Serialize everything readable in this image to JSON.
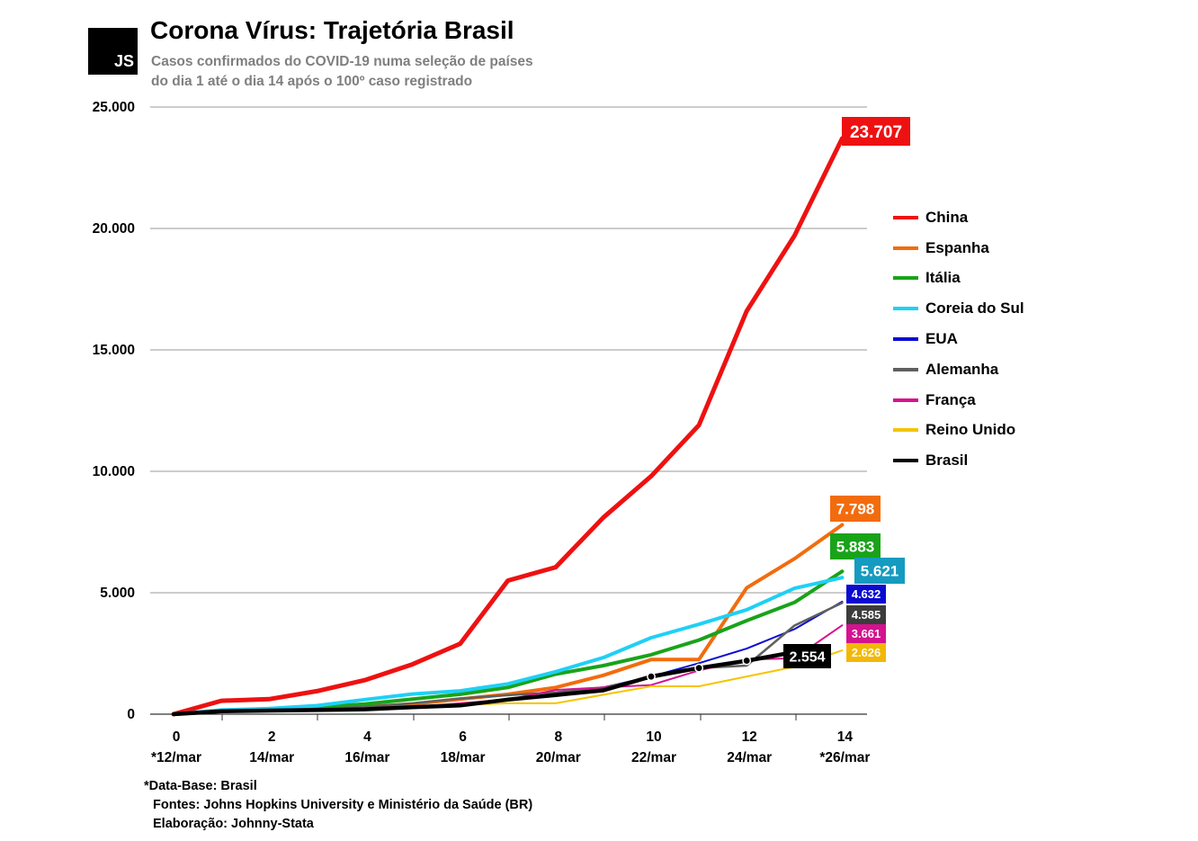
{
  "header": {
    "logo_text": "JS",
    "title": "Corona Vírus: Trajetória Brasil",
    "subtitle_line1": "Casos confirmados do COVID-19 numa seleção de países",
    "subtitle_line2": "do dia 1 até o dia 14 após o 100º caso registrado"
  },
  "footer": {
    "line1": "*Data-Base: Brasil",
    "line2": "Fontes: Johns Hopkins University e Ministério da Saúde (BR)",
    "line3": "Elaboração: Johnny-Stata"
  },
  "chart_data": {
    "type": "line",
    "ylim": [
      0,
      25000
    ],
    "xlim": [
      0,
      14
    ],
    "y_ticks": [
      0,
      5000,
      10000,
      15000,
      20000,
      25000
    ],
    "y_tick_labels": [
      "0",
      "5.000",
      "10.000",
      "15.000",
      "20.000",
      "25.000"
    ],
    "x_tick_values": [
      0,
      2,
      4,
      6,
      8,
      10,
      12,
      14
    ],
    "x_tick_labels": [
      "0",
      "2",
      "4",
      "6",
      "8",
      "10",
      "12",
      "14"
    ],
    "x_date_labels": [
      "*12/mar",
      "14/mar",
      "16/mar",
      "18/mar",
      "20/mar",
      "22/mar",
      "24/mar",
      "*26/mar"
    ],
    "grid": true,
    "legend_position": "right",
    "x": [
      0,
      1,
      2,
      3,
      4,
      5,
      6,
      7,
      8,
      9,
      10,
      11,
      12,
      13,
      14
    ],
    "series": [
      {
        "name": "China",
        "color": "#ee1111",
        "width": 5,
        "values": [
          0,
          550,
          620,
          950,
          1400,
          2050,
          2900,
          5500,
          6050,
          8100,
          9800,
          11900,
          16600,
          19700,
          23707
        ],
        "end_label": "23.707",
        "label_size": "big"
      },
      {
        "name": "Espanha",
        "color": "#f26c0d",
        "width": 4,
        "values": [
          0,
          150,
          180,
          220,
          300,
          420,
          620,
          820,
          1100,
          1600,
          2250,
          2250,
          5200,
          6400,
          7798
        ],
        "end_label": "7.798",
        "label_size": "big"
      },
      {
        "name": "Itália",
        "color": "#19a319",
        "width": 4,
        "values": [
          0,
          120,
          190,
          280,
          420,
          620,
          820,
          1100,
          1650,
          2000,
          2450,
          3050,
          3850,
          4600,
          5883
        ],
        "end_label": "5.883",
        "label_size": "big"
      },
      {
        "name": "Coreia do Sul",
        "color": "#1fd0f5",
        "width": 4,
        "values": [
          0,
          170,
          230,
          350,
          600,
          830,
          960,
          1250,
          1750,
          2330,
          3150,
          3700,
          4300,
          5180,
          5621
        ],
        "end_label": "5.621",
        "label_size": "big"
      },
      {
        "name": "EUA",
        "color": "#0a0ad1",
        "width": 2,
        "values": [
          0,
          100,
          140,
          180,
          220,
          300,
          400,
          560,
          800,
          1100,
          1550,
          2100,
          2700,
          3500,
          4632
        ],
        "end_label": "4.632",
        "label_size": "small"
      },
      {
        "name": "Alemanha",
        "color": "#5f5f5f",
        "width": 2.5,
        "values": [
          0,
          120,
          170,
          220,
          300,
          450,
          650,
          780,
          900,
          1100,
          1500,
          1900,
          2000,
          3650,
          4585
        ],
        "end_label": "4.585",
        "label_size": "small"
      },
      {
        "name": "França",
        "color": "#d4128f",
        "width": 2,
        "values": [
          0,
          100,
          130,
          180,
          220,
          300,
          450,
          600,
          1000,
          1100,
          1200,
          1800,
          2250,
          2300,
          3661
        ],
        "end_label": "3.661",
        "label_size": "small"
      },
      {
        "name": "Reino Unido",
        "color": "#f5c400",
        "width": 2,
        "values": [
          0,
          80,
          110,
          150,
          200,
          280,
          380,
          450,
          450,
          800,
          1150,
          1150,
          1550,
          1950,
          2626
        ],
        "end_label": "2.626",
        "label_size": "small"
      },
      {
        "name": "Brasil",
        "color": "#000000",
        "width": 4.5,
        "values": [
          0,
          120,
          150,
          170,
          200,
          290,
          360,
          600,
          790,
          980,
          1550,
          1900,
          2200,
          2554,
          null
        ],
        "end_label": "2.554",
        "label_size": "big",
        "markers": [
          10,
          11,
          12
        ]
      }
    ]
  },
  "colors": {
    "label_bg": {
      "China": "#ee1111",
      "Espanha": "#f26c0d",
      "Itália": "#19a319",
      "Coreia do Sul": "#159bc0",
      "EUA": "#0a0ad1",
      "Alemanha": "#3c3c3c",
      "França": "#d4128f",
      "Reino Unido": "#f2b807",
      "Brasil": "#000000"
    }
  }
}
